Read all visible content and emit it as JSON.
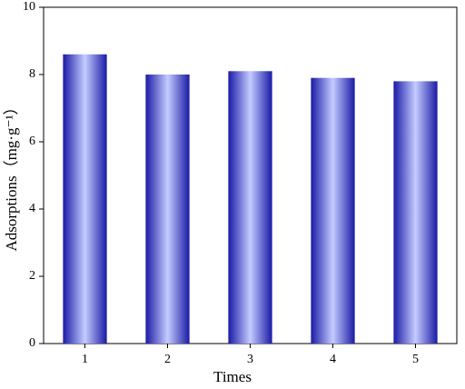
{
  "chart_data": {
    "type": "bar",
    "x_label": "Times",
    "y_label": "Adsorptions（mg·g⁻¹）",
    "categories": [
      "1",
      "2",
      "3",
      "4",
      "5"
    ],
    "values": [
      8.6,
      8.0,
      8.1,
      7.9,
      7.8
    ],
    "color": "#1a1aa6",
    "ylim": [
      0,
      10
    ],
    "yticks": [
      0,
      2,
      4,
      6,
      8,
      10
    ]
  }
}
